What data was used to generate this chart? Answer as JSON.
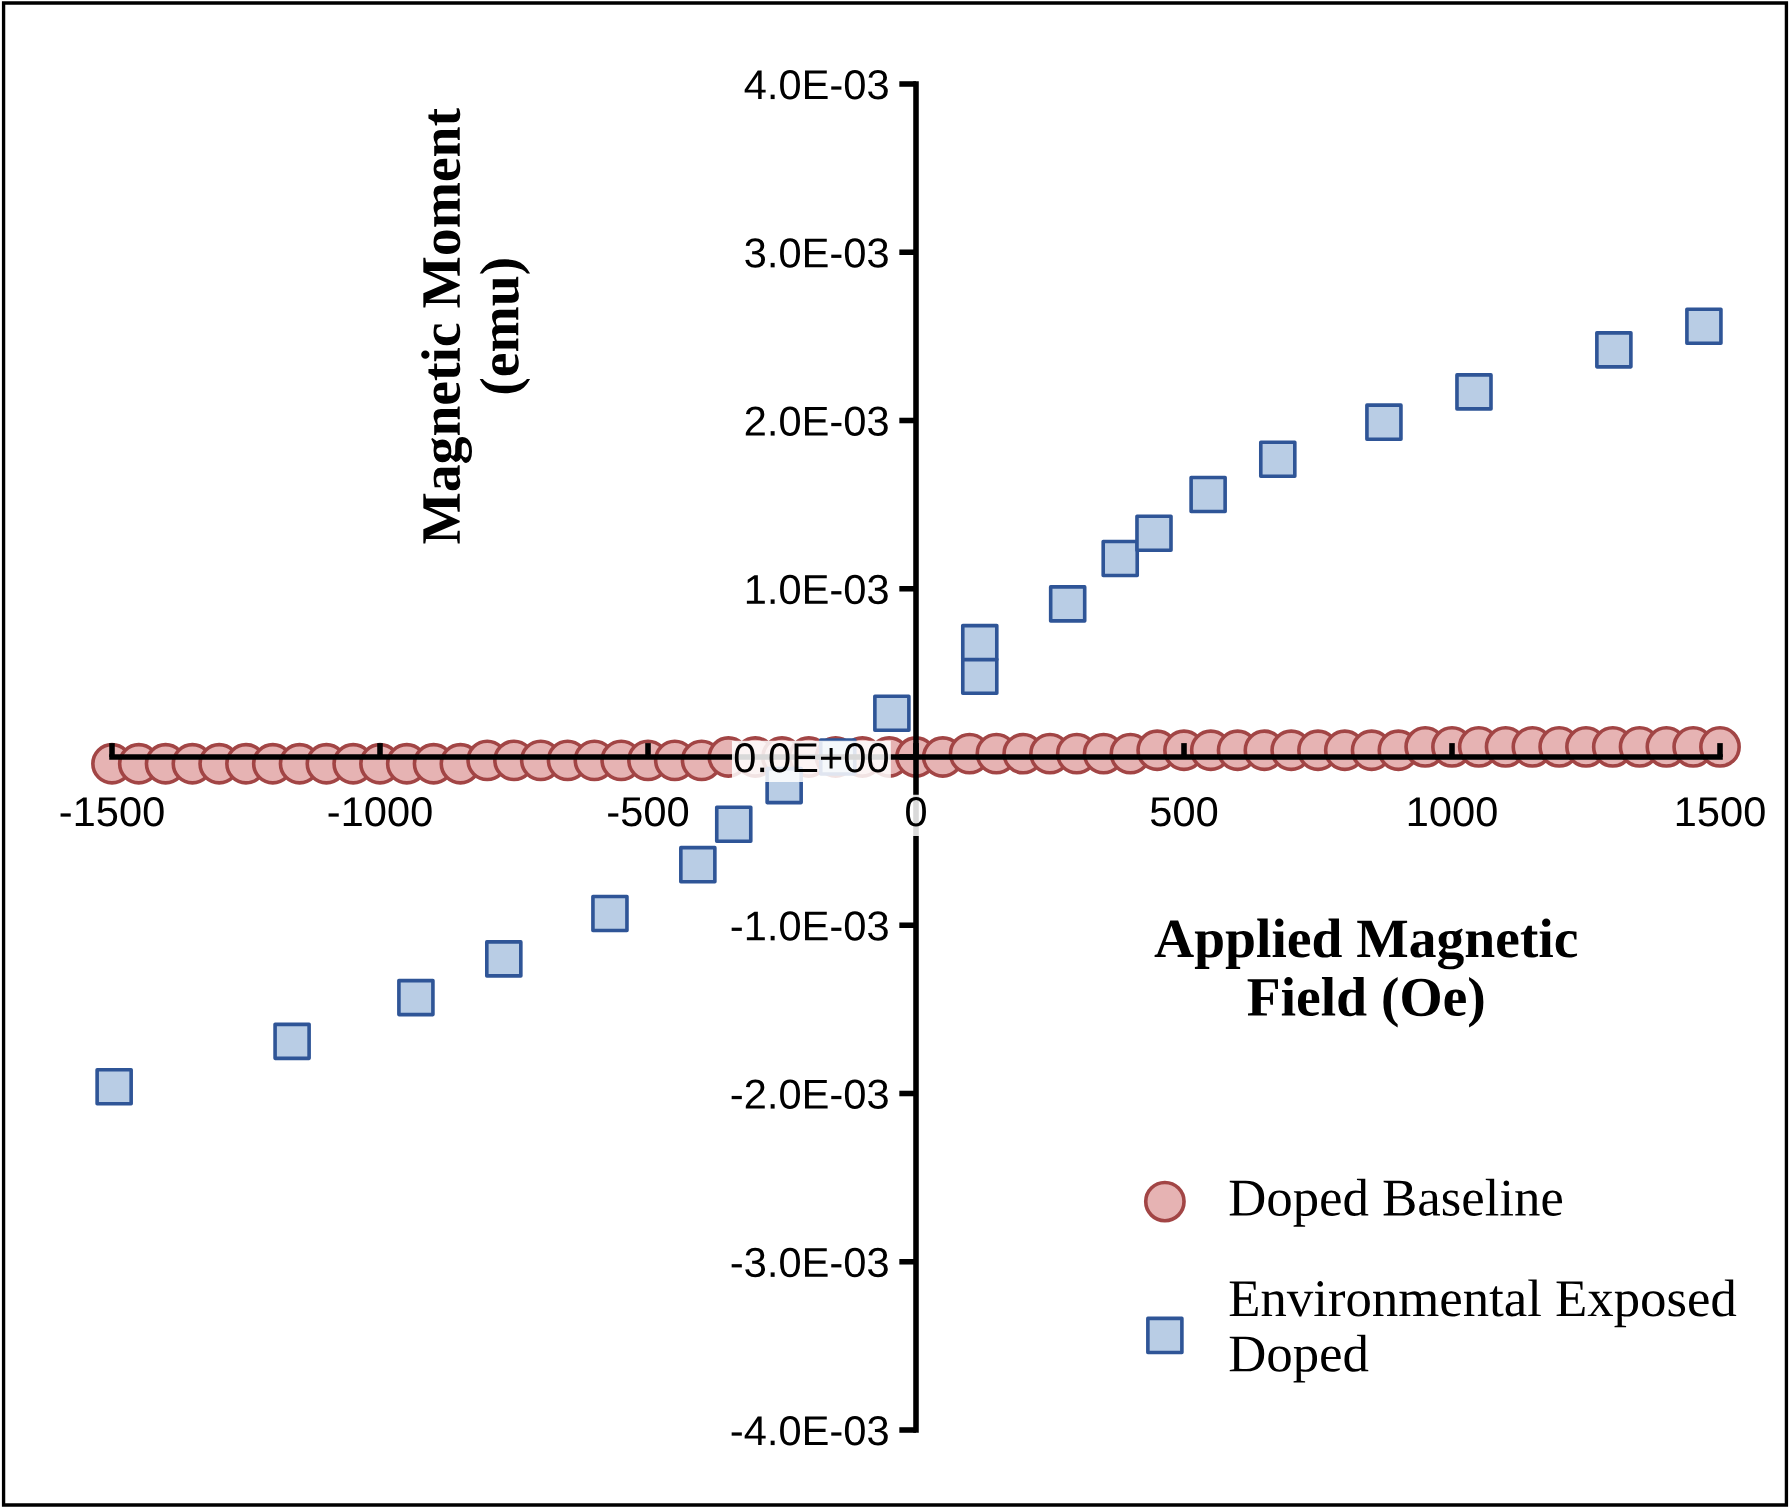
{
  "chart_data": {
    "type": "scatter",
    "xlabel": "Applied Magnetic\nField (Oe)",
    "ylabel": "Magnetic Moment\n(emu)",
    "xlim": [
      -1500,
      1500
    ],
    "xticks": [
      -1500,
      -1000,
      -500,
      0,
      500,
      1000,
      1500
    ],
    "ylim": [
      -0.004,
      0.004
    ],
    "yticks": [
      {
        "value": -0.004,
        "label": "-4.0E-03"
      },
      {
        "value": -0.003,
        "label": "-3.0E-03"
      },
      {
        "value": -0.002,
        "label": "-2.0E-03"
      },
      {
        "value": -0.001,
        "label": "-1.0E-03"
      },
      {
        "value": 0,
        "label": "0.0E+00"
      },
      {
        "value": 0.001,
        "label": "1.0E-03"
      },
      {
        "value": 0.002,
        "label": "2.0E-03"
      },
      {
        "value": 0.003,
        "label": "3.0E-03"
      },
      {
        "value": 0.004,
        "label": "4.0E-03"
      }
    ],
    "grid": false,
    "legend": "bottom right",
    "series": [
      {
        "name": "Doped Baseline",
        "color": "#e6b3b3",
        "marker": "circle",
        "x": [
          -1500,
          -1450,
          -1400,
          -1350,
          -1300,
          -1250,
          -1200,
          -1150,
          -1100,
          -1050,
          -1000,
          -950,
          -900,
          -850,
          -800,
          -750,
          -700,
          -650,
          -600,
          -550,
          -500,
          -450,
          -400,
          -350,
          -300,
          -250,
          -200,
          -150,
          -100,
          -50,
          0,
          50,
          100,
          150,
          200,
          250,
          300,
          350,
          400,
          450,
          500,
          550,
          600,
          650,
          700,
          750,
          800,
          850,
          900,
          950,
          1000,
          1050,
          1100,
          1150,
          1200,
          1250,
          1300,
          1350,
          1400,
          1450,
          1500
        ],
        "values": [
          -4e-05,
          -4e-05,
          -4e-05,
          -4e-05,
          -4e-05,
          -4e-05,
          -4e-05,
          -4e-05,
          -4e-05,
          -4e-05,
          -4e-05,
          -4e-05,
          -4e-05,
          -4e-05,
          -2e-05,
          -2e-05,
          -2e-05,
          -2e-05,
          -2e-05,
          -2e-05,
          -2e-05,
          -2e-05,
          -2e-05,
          0,
          0,
          0,
          0,
          0,
          0,
          0,
          0,
          0,
          2e-05,
          2e-05,
          2e-05,
          2e-05,
          2e-05,
          2e-05,
          2e-05,
          4e-05,
          4e-05,
          4e-05,
          4e-05,
          4e-05,
          4e-05,
          4e-05,
          4e-05,
          4e-05,
          4e-05,
          6e-05,
          6e-05,
          6e-05,
          6e-05,
          6e-05,
          6e-05,
          6e-05,
          6e-05,
          6e-05,
          6e-05,
          6e-05,
          6e-05
        ]
      },
      {
        "name": "Environmental Exposed\nDoped",
        "color": "#b9cde5",
        "marker": "square",
        "x": [
          -1496,
          -1164,
          -933,
          -769,
          -571,
          -407,
          -340,
          -246,
          -146,
          -45,
          119,
          119,
          283,
          381,
          444,
          545,
          675,
          873,
          1041,
          1302,
          1470
        ],
        "values": [
          -0.00196,
          -0.00169,
          -0.00143,
          -0.0012,
          -0.00093,
          -0.00064,
          -0.0004,
          -0.00017,
          0,
          0.00026,
          0.00048,
          0.00068,
          0.00091,
          0.00118,
          0.00133,
          0.00156,
          0.00177,
          0.00199,
          0.00217,
          0.00242,
          0.00256
        ]
      }
    ]
  }
}
